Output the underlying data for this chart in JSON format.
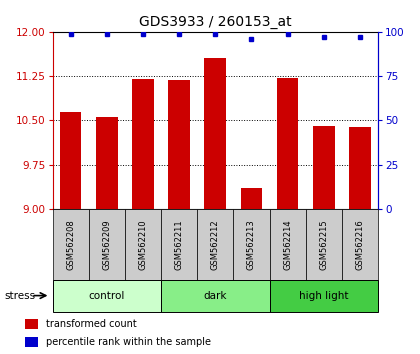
{
  "title": "GDS3933 / 260153_at",
  "samples": [
    "GSM562208",
    "GSM562209",
    "GSM562210",
    "GSM562211",
    "GSM562212",
    "GSM562213",
    "GSM562214",
    "GSM562215",
    "GSM562216"
  ],
  "transformed_counts": [
    10.65,
    10.55,
    11.2,
    11.18,
    11.55,
    9.35,
    11.22,
    10.4,
    10.38
  ],
  "percentile_ranks": [
    99,
    99,
    99,
    99,
    99,
    96,
    99,
    97,
    97
  ],
  "ylim_left": [
    9,
    12
  ],
  "ylim_right": [
    0,
    100
  ],
  "yticks_left": [
    9,
    9.75,
    10.5,
    11.25,
    12
  ],
  "yticks_right": [
    0,
    25,
    50,
    75,
    100
  ],
  "groups": [
    {
      "label": "control",
      "indices": [
        0,
        1,
        2
      ],
      "color": "#ccffcc"
    },
    {
      "label": "dark",
      "indices": [
        3,
        4,
        5
      ],
      "color": "#88ee88"
    },
    {
      "label": "high light",
      "indices": [
        6,
        7,
        8
      ],
      "color": "#44cc44"
    }
  ],
  "bar_color": "#cc0000",
  "dot_color": "#0000cc",
  "bar_width": 0.6,
  "background_sample": "#cccccc",
  "stress_label": "stress",
  "legend_bar_label": "transformed count",
  "legend_dot_label": "percentile rank within the sample",
  "title_fontsize": 10,
  "tick_fontsize": 7.5,
  "left_axis_color": "#cc0000",
  "right_axis_color": "#0000cc"
}
